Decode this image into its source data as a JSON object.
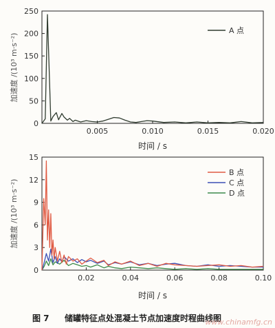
{
  "chart_data": [
    {
      "type": "line",
      "ylabel": "加速度 /(10³ m·s⁻²)",
      "xlabel": "时间 / s",
      "xlim": [
        0,
        0.02
      ],
      "ylim": [
        0,
        250
      ],
      "xticks": [
        "0.005",
        "0.010",
        "0.015",
        "0.020"
      ],
      "yticks": [
        "0",
        "50",
        "100",
        "150",
        "200",
        "250"
      ],
      "legend_position": "top-right",
      "series": [
        {
          "name": "A 点",
          "color": "#2f3b2f",
          "x": [
            0,
            0.0003,
            0.0005,
            0.0008,
            0.001,
            0.0013,
            0.0015,
            0.0018,
            0.002,
            0.0023,
            0.0025,
            0.0028,
            0.003,
            0.0035,
            0.004,
            0.0045,
            0.005,
            0.0055,
            0.006,
            0.0065,
            0.007,
            0.0075,
            0.008,
            0.0085,
            0.009,
            0.0095,
            0.01,
            0.011,
            0.012,
            0.013,
            0.014,
            0.015,
            0.016,
            0.017,
            0.018,
            0.019,
            0.02
          ],
          "values": [
            0,
            10,
            242,
            5,
            15,
            24,
            8,
            22,
            14,
            7,
            11,
            4,
            7,
            3,
            6,
            4,
            3,
            5,
            9,
            13,
            12,
            7,
            3,
            2,
            4,
            6,
            5,
            2,
            3,
            1,
            3,
            1,
            2,
            1,
            4,
            1,
            2
          ]
        }
      ]
    },
    {
      "type": "line",
      "ylabel": "加速度 /(10³ m·s⁻²)",
      "xlabel": "时间 / s",
      "xlim": [
        0,
        0.1
      ],
      "ylim": [
        0,
        15
      ],
      "xticks": [
        "0.02",
        "0.04",
        "0.06",
        "0.08",
        "0.10"
      ],
      "yticks": [
        "0",
        "3",
        "6",
        "9",
        "12",
        "15"
      ],
      "legend_position": "top-right",
      "series": [
        {
          "name": "B 点",
          "color": "#e05a43",
          "x": [
            0,
            0.0008,
            0.0015,
            0.002,
            0.0025,
            0.003,
            0.0035,
            0.004,
            0.0045,
            0.005,
            0.0055,
            0.006,
            0.007,
            0.008,
            0.009,
            0.01,
            0.011,
            0.012,
            0.014,
            0.016,
            0.018,
            0.02,
            0.022,
            0.025,
            0.028,
            0.03,
            0.033,
            0.036,
            0.04,
            0.044,
            0.048,
            0.052,
            0.056,
            0.06,
            0.065,
            0.07,
            0.075,
            0.08,
            0.085,
            0.09,
            0.095,
            0.1
          ],
          "values": [
            0,
            9.5,
            6,
            14.5,
            4,
            8,
            3,
            7.5,
            2,
            4,
            1.5,
            3,
            1.2,
            2.5,
            1,
            2,
            0.8,
            1.8,
            1.2,
            1.5,
            0.8,
            1.2,
            1.6,
            1,
            1.3,
            0.6,
            1.1,
            0.8,
            1.2,
            0.6,
            0.9,
            0.5,
            0.9,
            0.7,
            0.6,
            0.5,
            0.6,
            0.7,
            0.5,
            0.6,
            0.4,
            0.5
          ]
        },
        {
          "name": "C 点",
          "color": "#3b4fb5",
          "x": [
            0,
            0.001,
            0.002,
            0.003,
            0.004,
            0.005,
            0.006,
            0.007,
            0.008,
            0.009,
            0.01,
            0.012,
            0.014,
            0.016,
            0.018,
            0.02,
            0.022,
            0.025,
            0.028,
            0.03,
            0.033,
            0.036,
            0.04,
            0.044,
            0.048,
            0.052,
            0.056,
            0.06,
            0.065,
            0.07,
            0.075,
            0.08,
            0.085,
            0.09,
            0.095,
            0.1
          ],
          "values": [
            0,
            1,
            2.2,
            1.2,
            2.8,
            1,
            1.8,
            0.9,
            1.5,
            1.1,
            1.8,
            1.2,
            1.5,
            1,
            1.4,
            1.1,
            1.3,
            0.9,
            1.2,
            0.7,
            1,
            0.8,
            1.1,
            0.7,
            0.9,
            0.6,
            0.8,
            0.9,
            0.6,
            0.5,
            0.7,
            0.5,
            0.6,
            0.5,
            0.4,
            0.4
          ]
        },
        {
          "name": "D 点",
          "color": "#3d8a4a",
          "x": [
            0,
            0.001,
            0.002,
            0.003,
            0.004,
            0.005,
            0.006,
            0.008,
            0.01,
            0.012,
            0.014,
            0.016,
            0.018,
            0.02,
            0.022,
            0.025,
            0.028,
            0.03,
            0.033,
            0.036,
            0.04,
            0.044,
            0.048,
            0.052,
            0.056,
            0.06,
            0.065,
            0.07,
            0.075,
            0.08,
            0.085,
            0.09,
            0.095,
            0.1
          ],
          "values": [
            0,
            0.5,
            1.2,
            0.6,
            1.5,
            0.7,
            1.1,
            0.8,
            1.3,
            0.6,
            0.9,
            0.7,
            0.5,
            0.6,
            0.4,
            0.7,
            0.3,
            0.5,
            0.3,
            0.2,
            0.4,
            0.3,
            0.2,
            0.3,
            0.2,
            0.1,
            0.2,
            0.1,
            0.2,
            0.1,
            0.1,
            0.1,
            0.1,
            0.1
          ]
        }
      ]
    }
  ],
  "caption": {
    "number": "图 7",
    "text": "储罐特征点处混凝土节点加速度时程曲线图"
  },
  "watermark": "www.chinamfg.cn"
}
